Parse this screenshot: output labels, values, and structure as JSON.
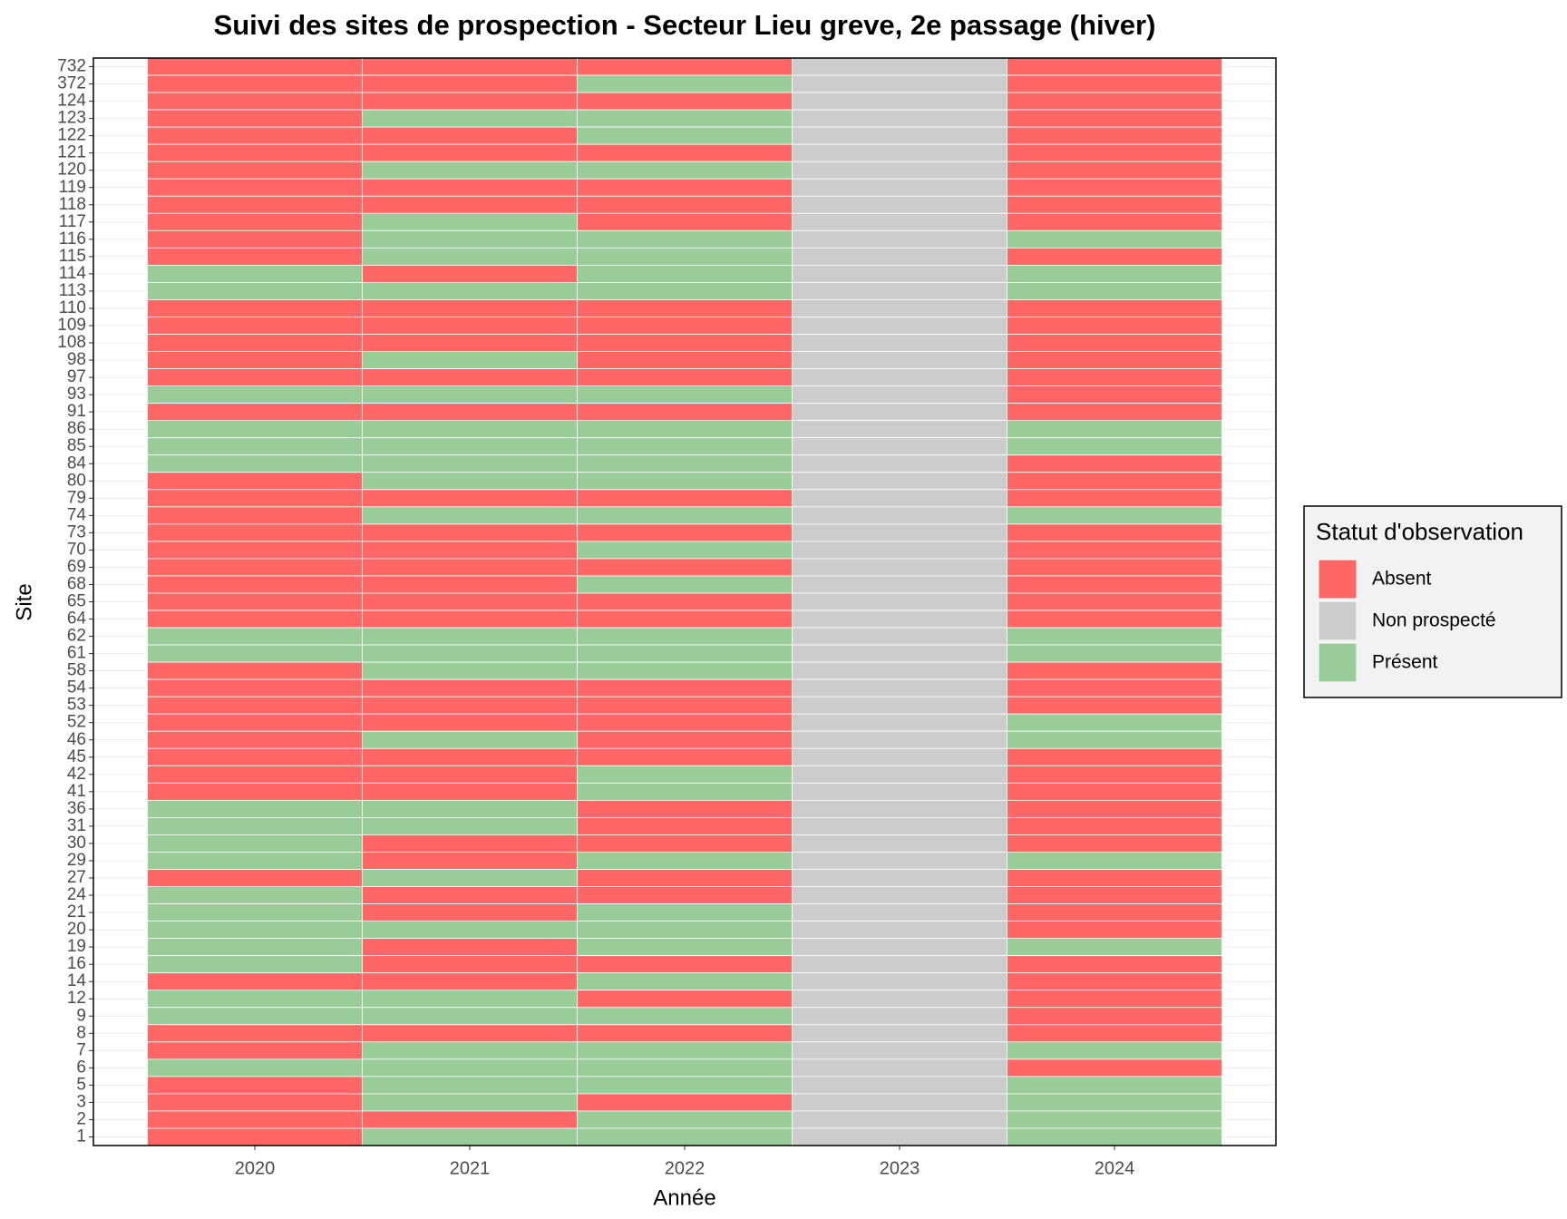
{
  "chart_data": {
    "type": "heatmap",
    "title": "Suivi des sites de prospection - Secteur Lieu greve, 2e passage (hiver)",
    "x_label": "Année",
    "y_label": "Site",
    "x": [
      "2020",
      "2021",
      "2022",
      "2023",
      "2024"
    ],
    "y": [
      "732",
      "372",
      "124",
      "123",
      "122",
      "121",
      "120",
      "119",
      "118",
      "117",
      "116",
      "115",
      "114",
      "113",
      "110",
      "109",
      "108",
      "98",
      "97",
      "93",
      "91",
      "86",
      "85",
      "84",
      "80",
      "79",
      "74",
      "73",
      "70",
      "69",
      "68",
      "65",
      "64",
      "62",
      "61",
      "58",
      "54",
      "53",
      "52",
      "46",
      "45",
      "42",
      "41",
      "36",
      "31",
      "30",
      "29",
      "27",
      "24",
      "21",
      "20",
      "19",
      "16",
      "14",
      "12",
      "9",
      "8",
      "7",
      "6",
      "5",
      "3",
      "2",
      "1"
    ],
    "legend": {
      "title": "Statut d'observation",
      "items": [
        {
          "name": "Absent",
          "color": "#ff6666"
        },
        {
          "name": "Non prospecté",
          "color": "#cccccc"
        },
        {
          "name": "Présent",
          "color": "#99cc99"
        }
      ]
    },
    "values": [
      [
        "Absent",
        "Absent",
        "Absent",
        "Non prospecté",
        "Absent"
      ],
      [
        "Absent",
        "Absent",
        "Présent",
        "Non prospecté",
        "Absent"
      ],
      [
        "Absent",
        "Absent",
        "Absent",
        "Non prospecté",
        "Absent"
      ],
      [
        "Absent",
        "Présent",
        "Présent",
        "Non prospecté",
        "Absent"
      ],
      [
        "Absent",
        "Absent",
        "Présent",
        "Non prospecté",
        "Absent"
      ],
      [
        "Absent",
        "Absent",
        "Absent",
        "Non prospecté",
        "Absent"
      ],
      [
        "Absent",
        "Présent",
        "Présent",
        "Non prospecté",
        "Absent"
      ],
      [
        "Absent",
        "Absent",
        "Absent",
        "Non prospecté",
        "Absent"
      ],
      [
        "Absent",
        "Absent",
        "Absent",
        "Non prospecté",
        "Absent"
      ],
      [
        "Absent",
        "Présent",
        "Absent",
        "Non prospecté",
        "Absent"
      ],
      [
        "Absent",
        "Présent",
        "Présent",
        "Non prospecté",
        "Présent"
      ],
      [
        "Absent",
        "Présent",
        "Présent",
        "Non prospecté",
        "Absent"
      ],
      [
        "Présent",
        "Absent",
        "Présent",
        "Non prospecté",
        "Présent"
      ],
      [
        "Présent",
        "Présent",
        "Présent",
        "Non prospecté",
        "Présent"
      ],
      [
        "Absent",
        "Absent",
        "Absent",
        "Non prospecté",
        "Absent"
      ],
      [
        "Absent",
        "Absent",
        "Absent",
        "Non prospecté",
        "Absent"
      ],
      [
        "Absent",
        "Absent",
        "Absent",
        "Non prospecté",
        "Absent"
      ],
      [
        "Absent",
        "Présent",
        "Absent",
        "Non prospecté",
        "Absent"
      ],
      [
        "Absent",
        "Absent",
        "Absent",
        "Non prospecté",
        "Absent"
      ],
      [
        "Présent",
        "Présent",
        "Présent",
        "Non prospecté",
        "Absent"
      ],
      [
        "Absent",
        "Absent",
        "Absent",
        "Non prospecté",
        "Absent"
      ],
      [
        "Présent",
        "Présent",
        "Présent",
        "Non prospecté",
        "Présent"
      ],
      [
        "Présent",
        "Présent",
        "Présent",
        "Non prospecté",
        "Présent"
      ],
      [
        "Présent",
        "Présent",
        "Présent",
        "Non prospecté",
        "Absent"
      ],
      [
        "Absent",
        "Présent",
        "Présent",
        "Non prospecté",
        "Absent"
      ],
      [
        "Absent",
        "Absent",
        "Absent",
        "Non prospecté",
        "Absent"
      ],
      [
        "Absent",
        "Présent",
        "Présent",
        "Non prospecté",
        "Présent"
      ],
      [
        "Absent",
        "Absent",
        "Absent",
        "Non prospecté",
        "Absent"
      ],
      [
        "Absent",
        "Absent",
        "Présent",
        "Non prospecté",
        "Absent"
      ],
      [
        "Absent",
        "Absent",
        "Absent",
        "Non prospecté",
        "Absent"
      ],
      [
        "Absent",
        "Absent",
        "Présent",
        "Non prospecté",
        "Absent"
      ],
      [
        "Absent",
        "Absent",
        "Absent",
        "Non prospecté",
        "Absent"
      ],
      [
        "Absent",
        "Absent",
        "Absent",
        "Non prospecté",
        "Absent"
      ],
      [
        "Présent",
        "Présent",
        "Présent",
        "Non prospecté",
        "Présent"
      ],
      [
        "Présent",
        "Présent",
        "Présent",
        "Non prospecté",
        "Présent"
      ],
      [
        "Absent",
        "Présent",
        "Présent",
        "Non prospecté",
        "Absent"
      ],
      [
        "Absent",
        "Absent",
        "Absent",
        "Non prospecté",
        "Absent"
      ],
      [
        "Absent",
        "Absent",
        "Absent",
        "Non prospecté",
        "Absent"
      ],
      [
        "Absent",
        "Absent",
        "Absent",
        "Non prospecté",
        "Présent"
      ],
      [
        "Absent",
        "Présent",
        "Absent",
        "Non prospecté",
        "Présent"
      ],
      [
        "Absent",
        "Absent",
        "Absent",
        "Non prospecté",
        "Absent"
      ],
      [
        "Absent",
        "Absent",
        "Présent",
        "Non prospecté",
        "Absent"
      ],
      [
        "Absent",
        "Absent",
        "Présent",
        "Non prospecté",
        "Absent"
      ],
      [
        "Présent",
        "Présent",
        "Absent",
        "Non prospecté",
        "Absent"
      ],
      [
        "Présent",
        "Présent",
        "Absent",
        "Non prospecté",
        "Absent"
      ],
      [
        "Présent",
        "Absent",
        "Absent",
        "Non prospecté",
        "Absent"
      ],
      [
        "Présent",
        "Absent",
        "Présent",
        "Non prospecté",
        "Présent"
      ],
      [
        "Absent",
        "Présent",
        "Absent",
        "Non prospecté",
        "Absent"
      ],
      [
        "Présent",
        "Absent",
        "Absent",
        "Non prospecté",
        "Absent"
      ],
      [
        "Présent",
        "Absent",
        "Présent",
        "Non prospecté",
        "Absent"
      ],
      [
        "Présent",
        "Présent",
        "Présent",
        "Non prospecté",
        "Absent"
      ],
      [
        "Présent",
        "Absent",
        "Présent",
        "Non prospecté",
        "Présent"
      ],
      [
        "Présent",
        "Absent",
        "Absent",
        "Non prospecté",
        "Absent"
      ],
      [
        "Absent",
        "Absent",
        "Présent",
        "Non prospecté",
        "Absent"
      ],
      [
        "Présent",
        "Présent",
        "Absent",
        "Non prospecté",
        "Absent"
      ],
      [
        "Présent",
        "Présent",
        "Présent",
        "Non prospecté",
        "Absent"
      ],
      [
        "Absent",
        "Absent",
        "Absent",
        "Non prospecté",
        "Absent"
      ],
      [
        "Absent",
        "Présent",
        "Présent",
        "Non prospecté",
        "Présent"
      ],
      [
        "Présent",
        "Présent",
        "Présent",
        "Non prospecté",
        "Absent"
      ],
      [
        "Absent",
        "Présent",
        "Présent",
        "Non prospecté",
        "Présent"
      ],
      [
        "Absent",
        "Présent",
        "Absent",
        "Non prospecté",
        "Présent"
      ],
      [
        "Absent",
        "Absent",
        "Présent",
        "Non prospecté",
        "Présent"
      ],
      [
        "Absent",
        "Présent",
        "Présent",
        "Non prospecté",
        "Présent"
      ]
    ]
  }
}
